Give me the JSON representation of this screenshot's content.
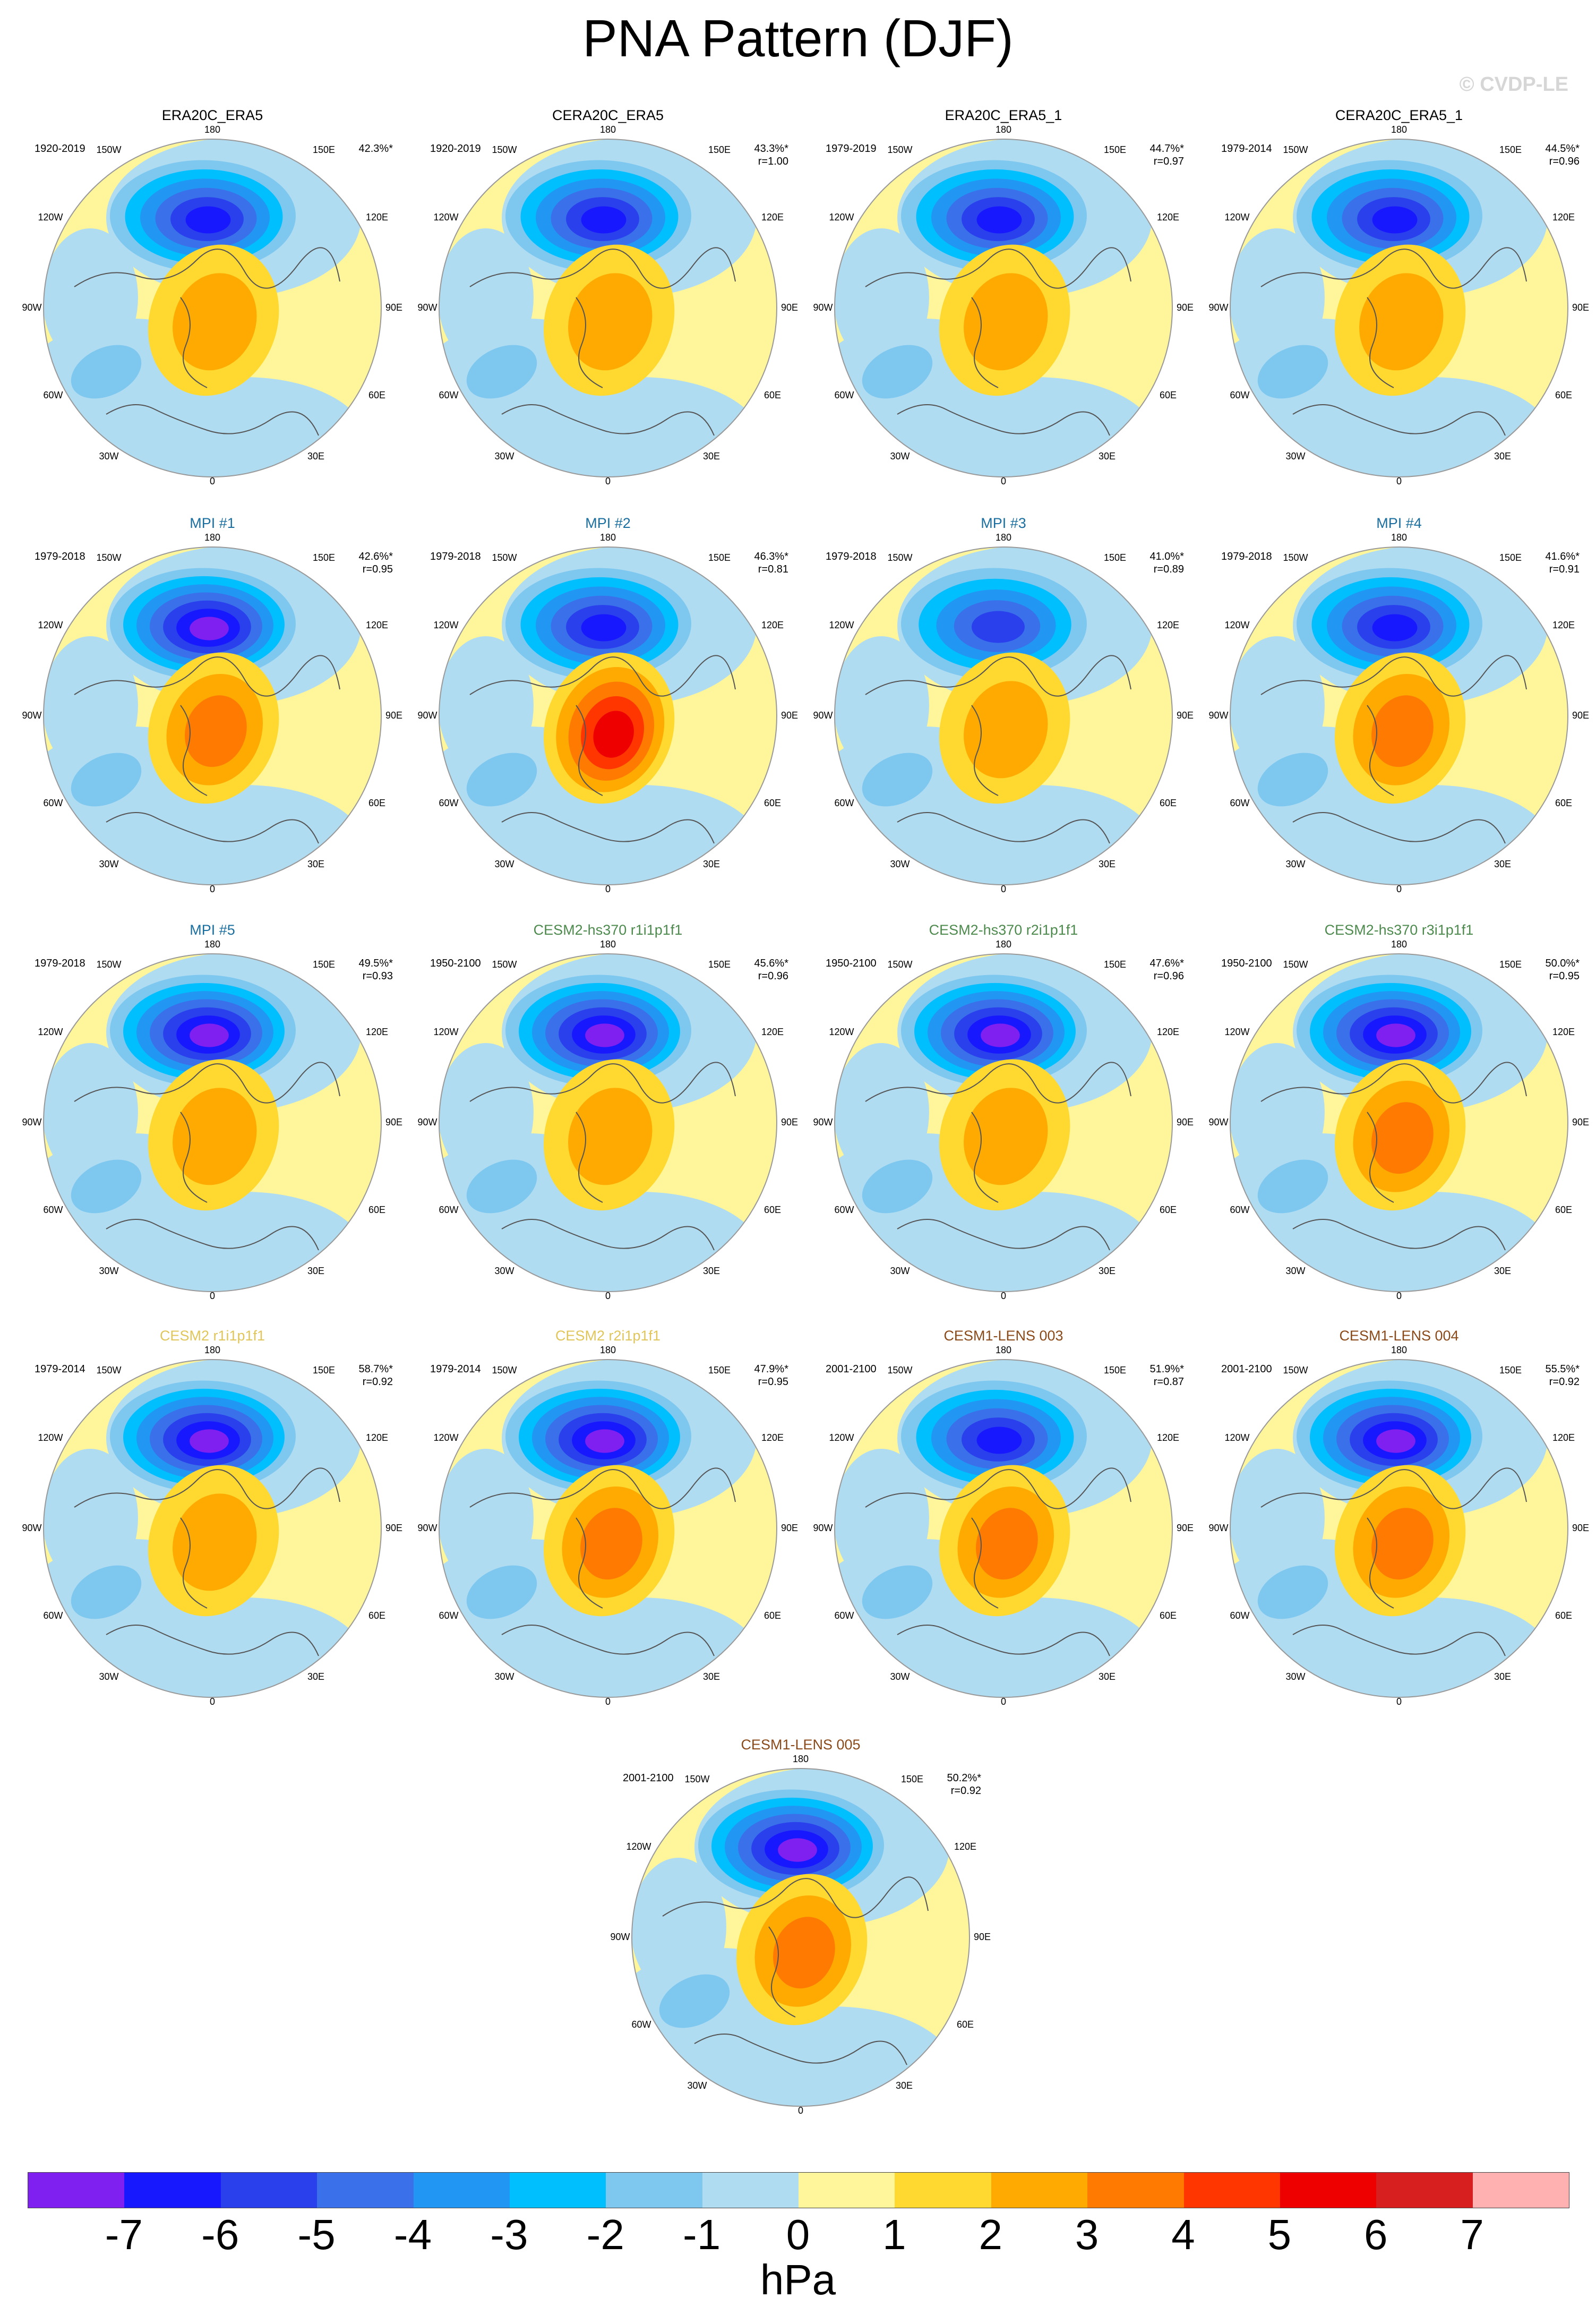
{
  "title": "PNA Pattern (DJF)",
  "copyright": "© CVDP-LE",
  "chart_data": {
    "type": "polar_contour_map",
    "title": "PNA Pattern (DJF)",
    "projection": "North Polar Stereographic",
    "lon_labels": [
      "180",
      "150W",
      "150E",
      "120W",
      "120E",
      "90W",
      "90E",
      "60W",
      "60E",
      "30W",
      "30E",
      "0"
    ],
    "units": "hPa",
    "colorbar": {
      "ticks": [
        "-7",
        "-6",
        "-5",
        "-4",
        "-3",
        "-2",
        "-1",
        "0",
        "1",
        "2",
        "3",
        "4",
        "5",
        "6",
        "7"
      ],
      "colors": [
        "#8020f0",
        "#1818ff",
        "#2a40ec",
        "#3a70ea",
        "#2196f3",
        "#00bfff",
        "#7ec8f0",
        "#b0dcf2",
        "#fff59a",
        "#ffd830",
        "#ffaa00",
        "#ff7a00",
        "#ff3600",
        "#ee0000",
        "#d81f1f",
        "#ffb0b0"
      ]
    },
    "panels": [
      {
        "title": "ERA20C_ERA5",
        "title_color": "#000000",
        "period": "1920-2019",
        "pct": "42.3%*",
        "r": "",
        "low": -6.5,
        "high": 2.0
      },
      {
        "title": "CERA20C_ERA5",
        "title_color": "#000000",
        "period": "1920-2019",
        "pct": "43.3%*",
        "r": "r=1.00",
        "low": -6.2,
        "high": 2.0
      },
      {
        "title": "ERA20C_ERA5_1",
        "title_color": "#000000",
        "period": "1979-2019",
        "pct": "44.7%*",
        "r": "r=0.97",
        "low": -6.4,
        "high": 2.0
      },
      {
        "title": "CERA20C_ERA5_1",
        "title_color": "#000000",
        "period": "1979-2014",
        "pct": "44.5%*",
        "r": "r=0.96",
        "low": -6.0,
        "high": 2.0
      },
      {
        "title": "MPI #1",
        "title_color": "#1a6fa0",
        "period": "1979-2018",
        "pct": "42.6%*",
        "r": "r=0.95",
        "low": -7.0,
        "high": 3.0
      },
      {
        "title": "MPI #2",
        "title_color": "#1a6fa0",
        "period": "1979-2018",
        "pct": "46.3%*",
        "r": "r=0.81",
        "low": -6.2,
        "high": 5.0
      },
      {
        "title": "MPI #3",
        "title_color": "#1a6fa0",
        "period": "1979-2018",
        "pct": "41.0%*",
        "r": "r=0.89",
        "low": -5.2,
        "high": 2.0
      },
      {
        "title": "MPI #4",
        "title_color": "#1a6fa0",
        "period": "1979-2018",
        "pct": "41.6%*",
        "r": "r=0.91",
        "low": -6.2,
        "high": 3.0
      },
      {
        "title": "MPI #5",
        "title_color": "#1a6fa0",
        "period": "1979-2018",
        "pct": "49.5%*",
        "r": "r=0.93",
        "low": -7.0,
        "high": 2.0
      },
      {
        "title": "CESM2-hs370 r1i1p1f1",
        "title_color": "#4d8a4d",
        "period": "1950-2100",
        "pct": "45.6%*",
        "r": "r=0.96",
        "low": -7.0,
        "high": 2.0
      },
      {
        "title": "CESM2-hs370 r2i1p1f1",
        "title_color": "#4d8a4d",
        "period": "1950-2100",
        "pct": "47.6%*",
        "r": "r=0.96",
        "low": -7.0,
        "high": 2.0
      },
      {
        "title": "CESM2-hs370 r3i1p1f1",
        "title_color": "#4d8a4d",
        "period": "1950-2100",
        "pct": "50.0%*",
        "r": "r=0.95",
        "low": -7.0,
        "high": 3.0
      },
      {
        "title": "CESM2 r1i1p1f1",
        "title_color": "#e0c65a",
        "period": "1979-2014",
        "pct": "58.7%*",
        "r": "r=0.92",
        "low": -7.2,
        "high": 2.0
      },
      {
        "title": "CESM2 r2i1p1f1",
        "title_color": "#e0c65a",
        "period": "1979-2014",
        "pct": "47.9%*",
        "r": "r=0.95",
        "low": -7.0,
        "high": 3.0
      },
      {
        "title": "CESM1-LENS 003",
        "title_color": "#8a4a1a",
        "period": "2001-2100",
        "pct": "51.9%*",
        "r": "r=0.87",
        "low": -6.2,
        "high": 3.0
      },
      {
        "title": "CESM1-LENS 004",
        "title_color": "#8a4a1a",
        "period": "2001-2100",
        "pct": "55.5%*",
        "r": "r=0.92",
        "low": -7.0,
        "high": 3.0
      },
      {
        "title": "CESM1-LENS 005",
        "title_color": "#8a4a1a",
        "period": "2001-2100",
        "pct": "50.2%*",
        "r": "r=0.92",
        "low": -7.0,
        "high": 3.0
      }
    ]
  }
}
